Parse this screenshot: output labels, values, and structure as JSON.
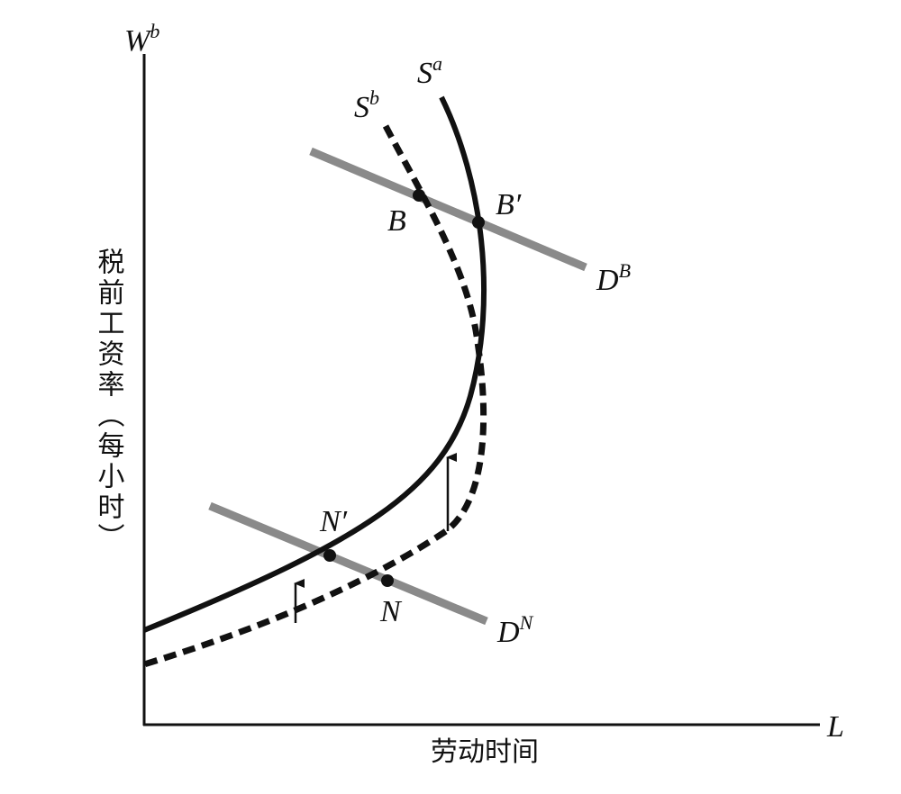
{
  "axes": {
    "y_symbol": {
      "base": "W",
      "sup": "b"
    },
    "x_symbol": "L",
    "y_label": "税前工资率（每小时）",
    "x_label": "劳动时间"
  },
  "curves": [
    {
      "base": "S",
      "sup": "a"
    },
    {
      "base": "S",
      "sup": "b"
    },
    {
      "base": "D",
      "sup": "B"
    },
    {
      "base": "D",
      "sup": "N"
    }
  ],
  "points": [
    "B",
    "B′",
    "N",
    "N′"
  ]
}
